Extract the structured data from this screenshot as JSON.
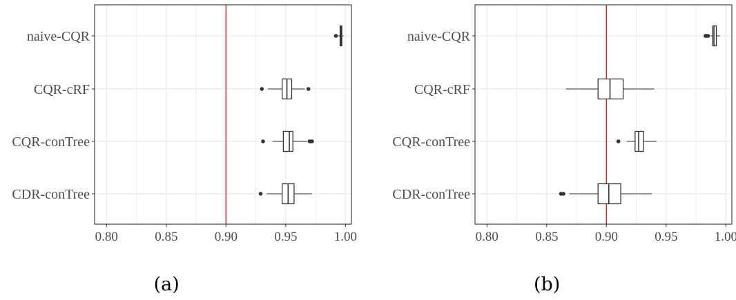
{
  "colors": {
    "reference_line": "#e41a1c",
    "box_stroke": "#333333",
    "grid": "#ebebeb",
    "panel_border": "#333333"
  },
  "chart_data": [
    {
      "type": "boxplot",
      "panel_label": "(a)",
      "categories": [
        "naive-CQR",
        "CQR-cRF",
        "CQR-conTree",
        "CDR-conTree"
      ],
      "xlim": [
        0.79,
        1.005
      ],
      "xticks": [
        0.8,
        0.85,
        0.9,
        0.95,
        1.0
      ],
      "xtick_labels": [
        "0.80",
        "0.85",
        "0.90",
        "0.95",
        "1.00"
      ],
      "reference_line": 0.9,
      "grid": true,
      "boxes": [
        {
          "category": "naive-CQR",
          "whisker_low": 0.994,
          "q1": 0.9955,
          "median": 0.9962,
          "q3": 0.997,
          "whisker_high": 0.9985,
          "outliers": [
            0.992
          ]
        },
        {
          "category": "CQR-cRF",
          "whisker_low": 0.935,
          "q1": 0.947,
          "median": 0.951,
          "q3": 0.955,
          "whisker_high": 0.966,
          "outliers": [
            0.93,
            0.969
          ]
        },
        {
          "category": "CQR-conTree",
          "whisker_low": 0.939,
          "q1": 0.948,
          "median": 0.953,
          "q3": 0.956,
          "whisker_high": 0.968,
          "outliers": [
            0.931,
            0.97,
            0.971,
            0.972
          ]
        },
        {
          "category": "CDR-conTree",
          "whisker_low": 0.934,
          "q1": 0.947,
          "median": 0.952,
          "q3": 0.957,
          "whisker_high": 0.972,
          "outliers": [
            0.929
          ]
        }
      ]
    },
    {
      "type": "boxplot",
      "panel_label": "(b)",
      "categories": [
        "naive-CQR",
        "CQR-cRF",
        "CQR-conTree",
        "CDR-conTree"
      ],
      "xlim": [
        0.79,
        1.005
      ],
      "xticks": [
        0.8,
        0.85,
        0.9,
        0.95,
        1.0
      ],
      "xtick_labels": [
        "0.80",
        "0.85",
        "0.90",
        "0.95",
        "1.00"
      ],
      "reference_line": 0.9,
      "grid": true,
      "boxes": [
        {
          "category": "naive-CQR",
          "whisker_low": 0.987,
          "q1": 0.989,
          "median": 0.99,
          "q3": 0.992,
          "whisker_high": 0.995,
          "outliers": [
            0.983,
            0.984,
            0.985
          ]
        },
        {
          "category": "CQR-cRF",
          "whisker_low": 0.866,
          "q1": 0.893,
          "median": 0.903,
          "q3": 0.914,
          "whisker_high": 0.94,
          "outliers": []
        },
        {
          "category": "CQR-conTree",
          "whisker_low": 0.917,
          "q1": 0.924,
          "median": 0.927,
          "q3": 0.931,
          "whisker_high": 0.942,
          "outliers": [
            0.91
          ]
        },
        {
          "category": "CDR-conTree",
          "whisker_low": 0.869,
          "q1": 0.893,
          "median": 0.902,
          "q3": 0.912,
          "whisker_high": 0.938,
          "outliers": [
            0.862,
            0.864
          ]
        }
      ]
    }
  ]
}
